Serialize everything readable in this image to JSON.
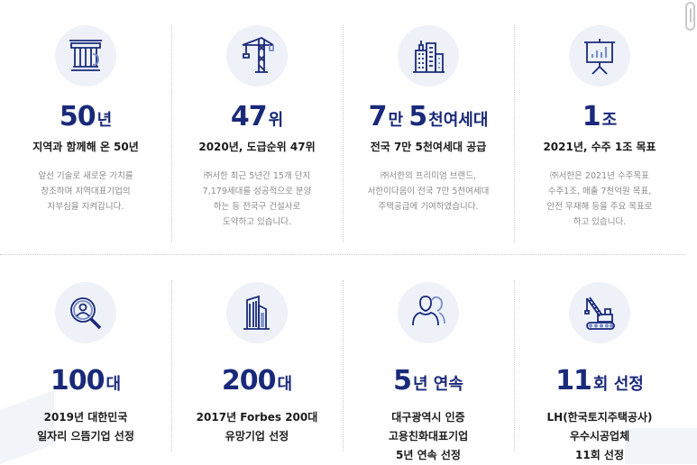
{
  "accent_color": "#1a2a7a",
  "items": [
    {
      "icon": "pillar-icon",
      "number": "50",
      "unit": "년",
      "subtitle": [
        "지역과 함께해 온 50년"
      ],
      "desc": [
        "앞선 기술로 새로운 가치를",
        "창조하며 지역대표기업의",
        "자부심을 지켜갑니다."
      ]
    },
    {
      "icon": "tower-crane-icon",
      "number": "47",
      "unit": "위",
      "subtitle": [
        "2020년, 도급순위 47위"
      ],
      "desc": [
        "㈜서한 최근 5년간 15개 단지",
        "7,179세대를 성공적으로 분양",
        "하는 등 전국구 건설사로",
        "도약하고 있습니다."
      ]
    },
    {
      "icon": "buildings-icon",
      "number": "7",
      "unit": "만 ",
      "number2": "5",
      "unit2": "천여세대",
      "subtitle": [
        "전국 7만 5천여세대 공급"
      ],
      "desc": [
        "㈜서한의 프리미엄 브랜드,",
        "서한이다음이 전국 7만 5천여세대",
        "주택공급에 기여하였습니다."
      ]
    },
    {
      "icon": "presentation-chart-icon",
      "number": "1",
      "unit": "조",
      "subtitle": [
        "2021년, 수주 1조 목표"
      ],
      "desc": [
        "㈜서한은 2021년 수주목표",
        "수주1조, 매출 7천억원 목표,",
        "안전 무재해 등을 주요 목표로",
        "하고 있습니다."
      ]
    },
    {
      "icon": "magnifier-person-icon",
      "number": "100",
      "unit": "대",
      "subtitle": [
        "2019년 대한민국",
        "일자리 으뜸기업 선정"
      ],
      "desc": []
    },
    {
      "icon": "skyscraper-icon",
      "number": "200",
      "unit": "대",
      "subtitle": [
        "2017년 Forbes 200대",
        "유망기업 선정"
      ],
      "desc": []
    },
    {
      "icon": "people-icon",
      "number": "5",
      "unit": "년 연속",
      "subtitle": [
        "대구광역시 인증",
        "고용친화대표기업",
        "5년 연속 선정"
      ],
      "desc": []
    },
    {
      "icon": "crawler-crane-icon",
      "number": "11",
      "unit": "회 선정",
      "subtitle": [
        "LH(한국토지주택공사)",
        "우수시공업체",
        "11회 선정"
      ],
      "desc": []
    }
  ]
}
